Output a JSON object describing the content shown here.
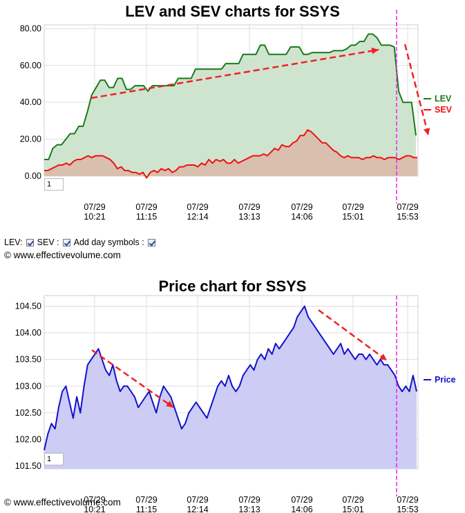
{
  "controls": {
    "lev_label": "LEV:",
    "sev_label": "SEV :",
    "day_symbols_label": "Add day symbols :",
    "lev_checked": true,
    "sev_checked": true,
    "day_symbols_checked": true
  },
  "copyright": "© www.effectivevolume.com",
  "zoom_value": "1",
  "colors": {
    "lev": "#1a7a1a",
    "lev_fill": "#cfe4cf",
    "sev": "#ee1111",
    "sev_fill": "#d8bfae",
    "price": "#1111cc",
    "price_fill": "#ccccf4",
    "annotation": "#ee2222",
    "marker": "#ee22ee",
    "grid": "#dddddd"
  },
  "chart_data": [
    {
      "type": "line",
      "title": "LEV and SEV charts for SSYS",
      "x_ticks": [
        {
          "date": "07/29",
          "time": "10:21"
        },
        {
          "date": "07/29",
          "time": "11:15"
        },
        {
          "date": "07/29",
          "time": "12:14"
        },
        {
          "date": "07/29",
          "time": "13:13"
        },
        {
          "date": "07/29",
          "time": "14:06"
        },
        {
          "date": "07/29",
          "time": "15:01"
        },
        {
          "date": "07/29",
          "time": "15:53"
        }
      ],
      "y_ticks": [
        "0.00",
        "20.00",
        "40.00",
        "60.00",
        "80.00"
      ],
      "ylim": [
        0,
        82
      ],
      "grid": true,
      "legend": "right",
      "series": [
        {
          "name": "LEV",
          "values": [
            9,
            9,
            15,
            17,
            17,
            20,
            23,
            23,
            27,
            27,
            35,
            44,
            48,
            52,
            52,
            48,
            48,
            53,
            53,
            47,
            47,
            49,
            49,
            49,
            46,
            49,
            49,
            49,
            49,
            49,
            49,
            53,
            53,
            53,
            53,
            58,
            58,
            58,
            58,
            58,
            58,
            58,
            61,
            61,
            61,
            61,
            66,
            66,
            66,
            66,
            71,
            71,
            66,
            66,
            66,
            66,
            66,
            70,
            70,
            70,
            66,
            66,
            67,
            67,
            67,
            67,
            67,
            68,
            68,
            68,
            69,
            71,
            71,
            73,
            73,
            77,
            77,
            75,
            71,
            71,
            71,
            70,
            46,
            40,
            40,
            40,
            22
          ]
        },
        {
          "name": "SEV",
          "values": [
            3,
            3,
            4,
            5,
            6,
            6,
            7,
            6,
            8,
            9,
            9,
            10,
            11,
            10,
            11,
            11,
            11,
            10,
            9,
            7,
            4,
            5,
            3,
            3,
            2,
            2,
            1,
            2,
            -1,
            2,
            3,
            2,
            4,
            3,
            4,
            2,
            3,
            5,
            5,
            6,
            6,
            6,
            5,
            7,
            6,
            9,
            7,
            9,
            8,
            9,
            7,
            7,
            9,
            7,
            8,
            9,
            10,
            11,
            11,
            11,
            12,
            11,
            13,
            15,
            14,
            17,
            16,
            16,
            18,
            19,
            22,
            22,
            25,
            24,
            22,
            20,
            18,
            18,
            16,
            14,
            13,
            11,
            10,
            11,
            10,
            10,
            10,
            9,
            10,
            10,
            11,
            10,
            10,
            9,
            10,
            10,
            10,
            9,
            10,
            11,
            11,
            10,
            10
          ]
        }
      ],
      "annotations": [
        {
          "type": "arrow",
          "direction": "up-right"
        },
        {
          "type": "arrow",
          "direction": "down"
        }
      ]
    },
    {
      "type": "line",
      "title": "Price chart for SSYS",
      "x_ticks": [
        {
          "date": "07/29",
          "time": "10:21"
        },
        {
          "date": "07/29",
          "time": "11:15"
        },
        {
          "date": "07/29",
          "time": "12:14"
        },
        {
          "date": "07/29",
          "time": "13:13"
        },
        {
          "date": "07/29",
          "time": "14:06"
        },
        {
          "date": "07/29",
          "time": "15:01"
        },
        {
          "date": "07/29",
          "time": "15:53"
        }
      ],
      "y_ticks": [
        "101.50",
        "102.00",
        "102.50",
        "103.00",
        "103.50",
        "104.00",
        "104.50"
      ],
      "ylim": [
        101.45,
        104.7
      ],
      "grid": true,
      "legend": "right",
      "series": [
        {
          "name": "Price",
          "values": [
            101.8,
            102.1,
            102.3,
            102.2,
            102.6,
            102.9,
            103.0,
            102.7,
            102.4,
            102.8,
            102.5,
            103.0,
            103.4,
            103.5,
            103.6,
            103.7,
            103.5,
            103.3,
            103.2,
            103.4,
            103.1,
            102.9,
            103.0,
            103.0,
            102.9,
            102.8,
            102.6,
            102.7,
            102.8,
            102.9,
            102.7,
            102.5,
            102.8,
            103.0,
            102.9,
            102.8,
            102.6,
            102.4,
            102.2,
            102.3,
            102.5,
            102.6,
            102.7,
            102.6,
            102.5,
            102.4,
            102.6,
            102.8,
            103.0,
            103.1,
            103.0,
            103.2,
            103.0,
            102.9,
            103.0,
            103.2,
            103.3,
            103.4,
            103.3,
            103.5,
            103.6,
            103.5,
            103.7,
            103.6,
            103.8,
            103.7,
            103.8,
            103.9,
            104.0,
            104.1,
            104.3,
            104.4,
            104.5,
            104.3,
            104.2,
            104.1,
            104.0,
            103.9,
            103.8,
            103.7,
            103.6,
            103.7,
            103.8,
            103.6,
            103.7,
            103.6,
            103.5,
            103.6,
            103.6,
            103.5,
            103.6,
            103.5,
            103.4,
            103.5,
            103.4,
            103.4,
            103.3,
            103.2,
            103.0,
            102.9,
            103.0,
            102.9,
            103.2,
            102.9
          ]
        }
      ],
      "annotations": [
        {
          "type": "arrow",
          "direction": "down-right"
        },
        {
          "type": "arrow",
          "direction": "down-right"
        }
      ]
    }
  ]
}
